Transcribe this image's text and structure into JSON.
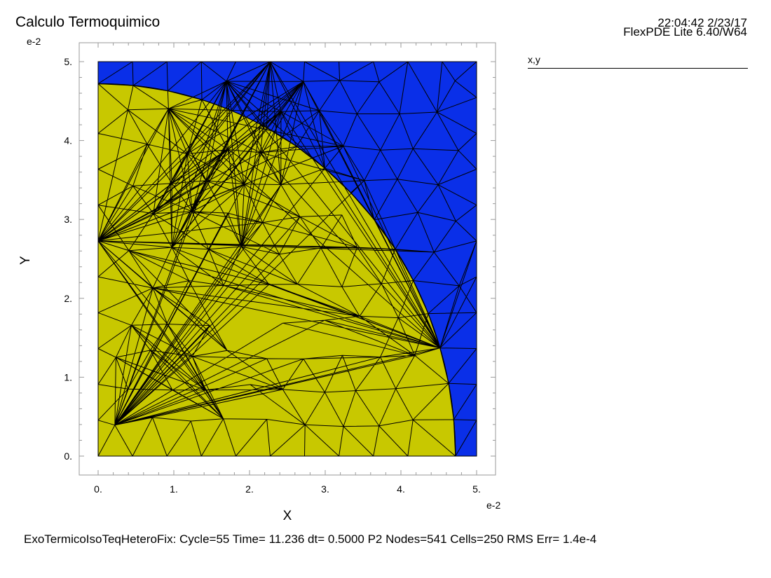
{
  "header": {
    "title": "Calculo Termoquimico",
    "timestamp": "22:04:42 2/23/17",
    "software": "FlexPDE Lite 6.40/W64"
  },
  "legend": {
    "title": "x,y"
  },
  "status": {
    "text": "ExoTermicoIsoTeqHeteroFix:  Cycle=55  Time= 11.236  dt= 0.5000  P2  Nodes=541 Cells=250 RMS Err= 1.4e-4"
  },
  "colors": {
    "outer_region": "#0a2fe8",
    "inner_region": "#c8c800",
    "mesh": "#000000"
  },
  "chart_data": {
    "type": "mesh",
    "xlabel": "X",
    "ylabel": "Y",
    "x_exponent": "e-2",
    "y_exponent": "e-2",
    "xlim": [
      0,
      5
    ],
    "ylim": [
      0,
      5
    ],
    "x_ticks": [
      "0.",
      "1.",
      "2.",
      "3.",
      "4.",
      "5."
    ],
    "y_ticks": [
      "0.",
      "1.",
      "2.",
      "3.",
      "4.",
      "5."
    ],
    "domain": {
      "x": [
        0,
        5
      ],
      "y": [
        0,
        5
      ]
    },
    "inner_region": {
      "shape": "quarter-circle",
      "center": [
        0,
        0
      ],
      "radius": 4.72
    },
    "mesh": {
      "nodes": 541,
      "cells": 250
    }
  }
}
